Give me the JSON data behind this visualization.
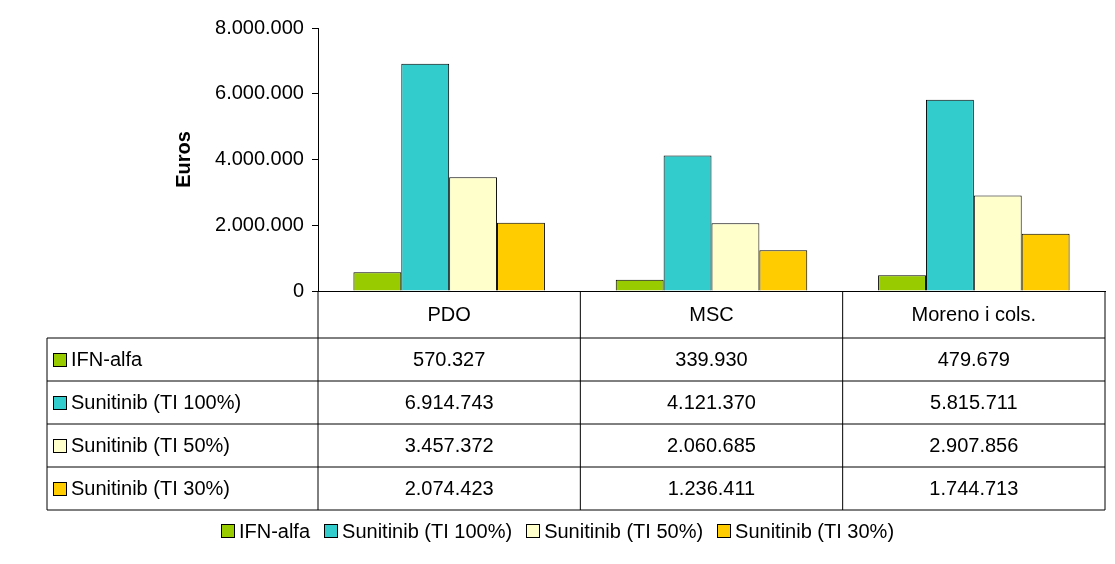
{
  "chart_data": {
    "type": "bar",
    "ylabel": "Euros",
    "categories": [
      "PDO",
      "MSC",
      "Moreno i cols."
    ],
    "ylim": [
      0,
      8000000
    ],
    "yticks": [
      {
        "value": 0,
        "label": "0"
      },
      {
        "value": 2000000,
        "label": "2.000.000"
      },
      {
        "value": 4000000,
        "label": "4.000.000"
      },
      {
        "value": 6000000,
        "label": "6.000.000"
      },
      {
        "value": 8000000,
        "label": "8.000.000"
      }
    ],
    "grid": false,
    "legend": "bottom",
    "series": [
      {
        "name": "IFN-alfa",
        "color": "#99cc00",
        "values": [
          570327,
          339930,
          479679
        ],
        "value_labels": [
          "570.327",
          "339.930",
          "479.679"
        ]
      },
      {
        "name": "Sunitinib (TI 100%)",
        "color": "#33cccc",
        "values": [
          6914743,
          4121370,
          5815711
        ],
        "value_labels": [
          "6.914.743",
          "4.121.370",
          "5.815.711"
        ]
      },
      {
        "name": "Sunitinib (TI 50%)",
        "color": "#ffffcc",
        "values": [
          3457372,
          2060685,
          2907856
        ],
        "value_labels": [
          "3.457.372",
          "2.060.685",
          "2.907.856"
        ]
      },
      {
        "name": "Sunitinib (TI 30%)",
        "color": "#ffcc00",
        "values": [
          2074423,
          1236411,
          1744713
        ],
        "value_labels": [
          "2.074.423",
          "1.236.411",
          "1.744.713"
        ]
      }
    ]
  }
}
